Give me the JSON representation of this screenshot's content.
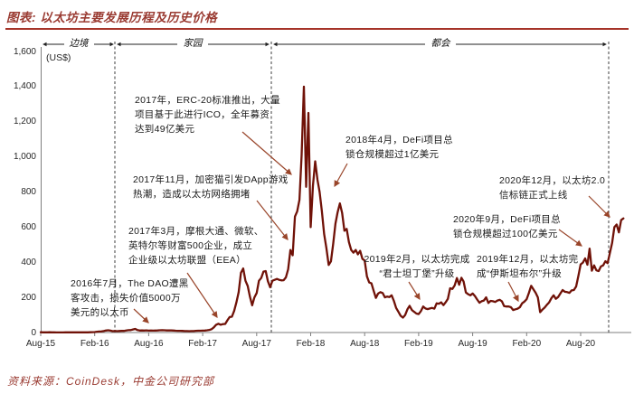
{
  "header": {
    "title": "图表: 以太坊主要发展历程及历史价格"
  },
  "footer": {
    "source": "资料来源：CoinDesk，中金公司研究部"
  },
  "colors": {
    "accent": "#9a3b32",
    "rule": "#a63429",
    "line": "#701208",
    "arrow": "#99452a"
  },
  "chart_data": {
    "type": "line",
    "title": "以太坊主要发展历程及历史价格",
    "ylabel": "(US$)",
    "ylim": [
      0,
      1600
    ],
    "y_ticks": [
      "0",
      "200",
      "400",
      "600",
      "800",
      "1,000",
      "1,200",
      "1,400",
      "1,600"
    ],
    "x_ticks": [
      "Aug-15",
      "Feb-16",
      "Aug-16",
      "Feb-17",
      "Aug-17",
      "Feb-18",
      "Aug-18",
      "Feb-19",
      "Aug-19",
      "Feb-20",
      "Aug-20"
    ],
    "grid": false,
    "legend": "none",
    "phases": [
      "边境",
      "家园",
      "都会"
    ],
    "phase_boundaries_x": [
      "2016-04",
      "2017-10",
      "2020-12"
    ],
    "series": [
      {
        "name": "以太坊价格 (US$)",
        "start": "2015-08",
        "end": "2020-12",
        "samples_per_month": 4,
        "values": [
          1.5,
          1.2,
          1.2,
          1.1,
          1.3,
          0.9,
          0.9,
          0.7,
          0.6,
          0.5,
          0.6,
          0.9,
          1.0,
          0.9,
          0.9,
          0.9,
          0.9,
          0.9,
          0.8,
          0.9,
          1.0,
          1.2,
          1.4,
          2.3,
          2.5,
          4.4,
          5.6,
          6.2,
          8.2,
          11.5,
          12.8,
          11.0,
          7.6,
          8.5,
          7.9,
          8.8,
          9.5,
          9.2,
          11.5,
          13.6,
          14.0,
          17.5,
          20.6,
          14.0,
          11.2,
          12.0,
          11.5,
          12.2,
          11.0,
          11.2,
          11.0,
          11.1,
          11.8,
          12.9,
          13.2,
          13.0,
          12.0,
          11.9,
          12.0,
          11.5,
          10.5,
          10.0,
          9.8,
          9.4,
          8.3,
          8.0,
          7.9,
          8.0,
          8.2,
          10.0,
          10.3,
          10.5,
          11.0,
          11.4,
          12.8,
          15.0,
          19.0,
          30.0,
          44.0,
          50.0,
          44.0,
          48.0,
          49.0,
          70.0,
          88.0,
          90.0,
          123.0,
          172.0,
          230.0,
          340.0,
          365.0,
          295.0,
          265.0,
          205.0,
          155.0,
          200.0,
          225.0,
          295.0,
          310.0,
          347.0,
          350.0,
          292.0,
          258.0,
          295.0,
          300.0,
          305.0,
          300.0,
          297.0,
          298.0,
          314.0,
          360.0,
          470.0,
          440.0,
          660.0,
          690.0,
          755.0,
          1010,
          1400,
          830,
          1250,
          600,
          835,
          975,
          870,
          800,
          690,
          560,
          480,
          385,
          405,
          505,
          620,
          685,
          735,
          680,
          580,
          590,
          515,
          470,
          455,
          470,
          445,
          465,
          420,
          410,
          320,
          285,
          280,
          238,
          197,
          222,
          230,
          225,
          200,
          205,
          202,
          212,
          180,
          140,
          118,
          95,
          85,
          100,
          132,
          152,
          128,
          118,
          108,
          105,
          122,
          148,
          137,
          133,
          137,
          140,
          136,
          166,
          164,
          172,
          156,
          172,
          192,
          252,
          248,
          268,
          310,
          272,
          312,
          290,
          228,
          218,
          212,
          222,
          208,
          188,
          170,
          178,
          182,
          200,
          168,
          180,
          178,
          174,
          182,
          186,
          178,
          150,
          148,
          148,
          144,
          128,
          132,
          136,
          144,
          166,
          176,
          190,
          226,
          266,
          246,
          226,
          200,
          116,
          130,
          142,
          158,
          172,
          196,
          212,
          192,
          202,
          222,
          242,
          232,
          230,
          226,
          240,
          242,
          262,
          322,
          388,
          398,
          422,
          386,
          478,
          352,
          382,
          354,
          350,
          376,
          382,
          406,
          395,
          452,
          510,
          600,
          615,
          570,
          640,
          650
        ]
      }
    ]
  },
  "annotations": [
    {
      "id": "dao",
      "text": "2016年7月，The DAO遭黑\n客攻击，损失价值5000万\n美元的以太币"
    },
    {
      "id": "eea",
      "text": "2017年3月，摩根大通、微软、\n英特尔等财富500企业，成立\n企业级以太坊联盟（EEA）"
    },
    {
      "id": "dapp",
      "text": "2017年11月，加密猫引发DApp游戏\n热潮，造成以太坊网络拥堵"
    },
    {
      "id": "erc20",
      "text": "2017年，ERC-20标准推出，大量\n项目基于此进行ICO，全年募资\n达到49亿美元"
    },
    {
      "id": "defi1",
      "text": "2018年4月，DeFi项目总\n锁仓规模超过1亿美元"
    },
    {
      "id": "constantinople",
      "text": "2019年2月，以太坊完成\n“君士坦丁堡”升级"
    },
    {
      "id": "istanbul",
      "text": "2019年12月，以太坊完\n成“伊斯坦布尔”升级"
    },
    {
      "id": "defi2",
      "text": "2020年9月，DeFi项目总\n锁仓规模超过100亿美元"
    },
    {
      "id": "eth2",
      "text": "2020年12月，以太坊2.0\n信标链正式上线"
    }
  ]
}
